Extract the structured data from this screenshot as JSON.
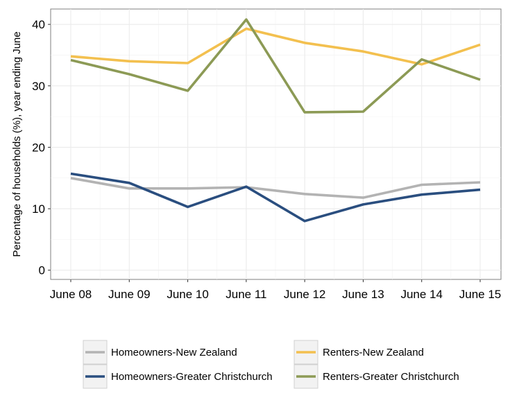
{
  "chart_data": {
    "type": "line",
    "title": "",
    "xlabel": "",
    "ylabel": "Percentage of households (%), year ending June",
    "categories": [
      "June 08",
      "June 09",
      "June 10",
      "June 11",
      "June 12",
      "June 13",
      "June 14",
      "June 15"
    ],
    "ylim": [
      -1.5,
      42.5
    ],
    "yticks": [
      0,
      10,
      20,
      30,
      40
    ],
    "grid": true,
    "legend_position": "bottom",
    "series": [
      {
        "name": "Homeowners-New Zealand",
        "color": "#b3b3b3",
        "values": [
          15.0,
          13.3,
          13.3,
          13.5,
          12.4,
          11.8,
          13.9,
          14.3
        ]
      },
      {
        "name": "Homeowners-Greater Christchurch",
        "color": "#2a4e7f",
        "values": [
          15.7,
          14.2,
          10.3,
          13.6,
          8.0,
          10.7,
          12.3,
          13.1
        ]
      },
      {
        "name": "Renters-New Zealand",
        "color": "#f3c04f",
        "values": [
          34.8,
          34.0,
          33.7,
          39.3,
          37.0,
          35.6,
          33.5,
          36.7
        ]
      },
      {
        "name": "Renters-Greater Christchurch",
        "color": "#8c9a55",
        "values": [
          34.2,
          31.9,
          29.2,
          40.8,
          25.7,
          25.8,
          34.3,
          31.0
        ]
      }
    ]
  }
}
